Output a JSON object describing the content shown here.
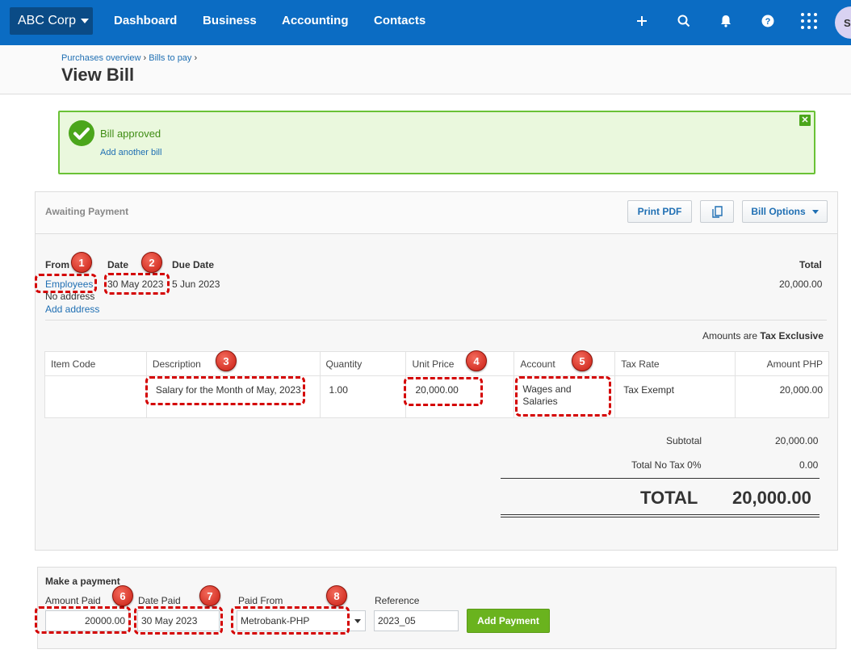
{
  "nav": {
    "org": "ABC Corp",
    "links": [
      "Dashboard",
      "Business",
      "Accounting",
      "Contacts"
    ],
    "avatar": "S"
  },
  "header": {
    "crumb_1": "Purchases overview",
    "crumb_sep": "›",
    "crumb_2": "Bills to pay",
    "title": "View Bill"
  },
  "alert": {
    "message": "Bill approved",
    "link": "Add another bill"
  },
  "bill": {
    "status": "Awaiting Payment",
    "print_pdf": "Print PDF",
    "options": "Bill Options",
    "from_label": "From",
    "from_value": "Employees",
    "no_address": "No address",
    "add_address": "Add address",
    "date_label": "Date",
    "date_value": "30 May 2023",
    "due_label": "Due Date",
    "due_value": "5 Jun 2023",
    "total_label": "Total",
    "total_value": "20,000.00",
    "amounts_are": "Amounts are",
    "tax_mode": "Tax Exclusive"
  },
  "table": {
    "headers": [
      "Item Code",
      "Description",
      "Quantity",
      "Unit Price",
      "Account",
      "Tax Rate",
      "Amount PHP"
    ],
    "row": {
      "item_code": "",
      "description": "Salary for the Month of May, 2023",
      "quantity": "1.00",
      "unit_price": "20,000.00",
      "account": "Wages and Salaries",
      "tax_rate": "Tax Exempt",
      "amount": "20,000.00"
    }
  },
  "summary": {
    "subtotal_label": "Subtotal",
    "subtotal_value": "20,000.00",
    "notax_label": "Total No Tax 0%",
    "notax_value": "0.00",
    "total_label": "TOTAL",
    "total_value": "20,000.00"
  },
  "payment": {
    "title": "Make a payment",
    "amount_label": "Amount Paid",
    "amount_value": "20000.00",
    "date_label": "Date Paid",
    "date_value": "30 May 2023",
    "from_label": "Paid From",
    "from_value": "Metrobank-PHP",
    "ref_label": "Reference",
    "ref_value": "2023_05",
    "add_button": "Add Payment"
  },
  "annotations": [
    "1",
    "2",
    "3",
    "4",
    "5",
    "6",
    "7",
    "8"
  ]
}
